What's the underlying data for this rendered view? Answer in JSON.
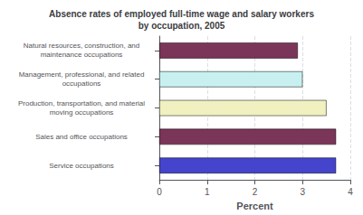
{
  "chart_data": {
    "type": "bar",
    "orientation": "horizontal",
    "title": "Absence rates of employed full-time wage and salary workers\nby occupation, 2005",
    "categories": [
      "Service occupations",
      "Sales and office occupations",
      "Production, transportation, and material\nmoving occupations",
      "Management, professional, and related\noccupations",
      "Natural resources, construction, and\nmaintenance occupations"
    ],
    "values": [
      3.7,
      3.7,
      3.5,
      3.0,
      2.9
    ],
    "colors": [
      "#4444cc",
      "#7b3558",
      "#f0f0c0",
      "#c8f0f0",
      "#7b3558"
    ],
    "xlabel": "Percent",
    "xlim": [
      0,
      4
    ],
    "xticks": [
      0,
      1,
      2,
      3,
      4
    ],
    "grid": true
  }
}
